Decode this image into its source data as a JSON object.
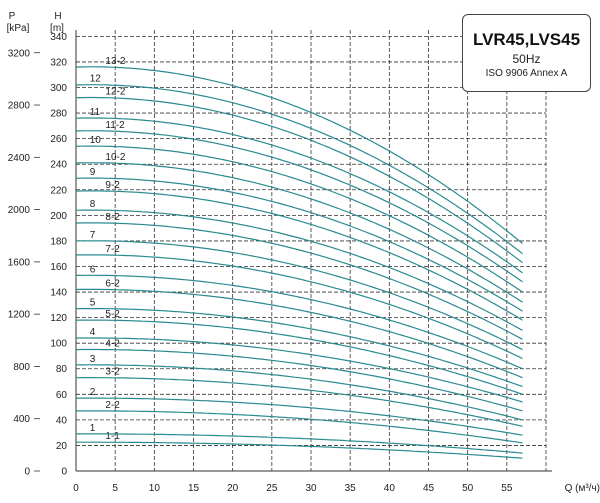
{
  "chart_data": {
    "type": "line",
    "title": "LVR45,LVS45",
    "subtitle": "50Hz",
    "standard": "ISO 9906 Annex A",
    "xlabel": "Q (м³/ч)",
    "ylabel_left": "P\n[kPa]",
    "ylabel_right": "H\n[m]",
    "xlim": [
      0,
      60
    ],
    "ylim": [
      0,
      345
    ],
    "plim_ratio": 9.78,
    "x_ticks": [
      0,
      5,
      10,
      15,
      20,
      25,
      30,
      35,
      40,
      45,
      50,
      55
    ],
    "h_ticks": [
      0,
      20,
      40,
      60,
      80,
      100,
      120,
      140,
      160,
      180,
      200,
      220,
      240,
      260,
      280,
      300,
      320,
      340
    ],
    "p_ticks": [
      0,
      400,
      800,
      1200,
      1600,
      2000,
      2400,
      2800,
      3200
    ],
    "x_max_curve": 57,
    "grid": true,
    "series": [
      {
        "name": "1-1",
        "shutoff": 22.5,
        "end": 10,
        "label_pos": 3.5
      },
      {
        "name": "1",
        "shutoff": 29,
        "end": 14,
        "label_pos": 1.5
      },
      {
        "name": "2-2",
        "shutoff": 47,
        "end": 22,
        "label_pos": 3.5
      },
      {
        "name": "2",
        "shutoff": 57,
        "end": 28,
        "label_pos": 1.5
      },
      {
        "name": "3-2",
        "shutoff": 73,
        "end": 35,
        "label_pos": 3.5
      },
      {
        "name": "3",
        "shutoff": 83,
        "end": 40,
        "label_pos": 1.5
      },
      {
        "name": "4-2",
        "shutoff": 95,
        "end": 47,
        "label_pos": 3.5
      },
      {
        "name": "4",
        "shutoff": 104,
        "end": 54,
        "label_pos": 1.5
      },
      {
        "name": "5-2",
        "shutoff": 118,
        "end": 60,
        "label_pos": 3.5
      },
      {
        "name": "5",
        "shutoff": 127,
        "end": 66,
        "label_pos": 1.5
      },
      {
        "name": "6-2",
        "shutoff": 142,
        "end": 73,
        "label_pos": 3.5
      },
      {
        "name": "6",
        "shutoff": 153,
        "end": 80,
        "label_pos": 1.5
      },
      {
        "name": "7-2",
        "shutoff": 169,
        "end": 88,
        "label_pos": 3.5
      },
      {
        "name": "7",
        "shutoff": 180,
        "end": 95,
        "label_pos": 1.5
      },
      {
        "name": "8-2",
        "shutoff": 194,
        "end": 103,
        "label_pos": 3.5
      },
      {
        "name": "8",
        "shutoff": 204,
        "end": 110,
        "label_pos": 1.5
      },
      {
        "name": "9-2",
        "shutoff": 219,
        "end": 118,
        "label_pos": 3.5
      },
      {
        "name": "9",
        "shutoff": 229,
        "end": 125,
        "label_pos": 1.5
      },
      {
        "name": "10-2",
        "shutoff": 241,
        "end": 132,
        "label_pos": 3.5
      },
      {
        "name": "10",
        "shutoff": 254,
        "end": 140,
        "label_pos": 1.5
      },
      {
        "name": "11-2",
        "shutoff": 266,
        "end": 148,
        "label_pos": 3.5
      },
      {
        "name": "11",
        "shutoff": 276,
        "end": 155,
        "label_pos": 1.5
      },
      {
        "name": "12-2",
        "shutoff": 292,
        "end": 163,
        "label_pos": 3.5
      },
      {
        "name": "12",
        "shutoff": 302,
        "end": 170,
        "label_pos": 1.5
      },
      {
        "name": "13-2",
        "shutoff": 316,
        "end": 178,
        "label_pos": 3.5
      }
    ],
    "line_color": "#2a8a8f"
  }
}
